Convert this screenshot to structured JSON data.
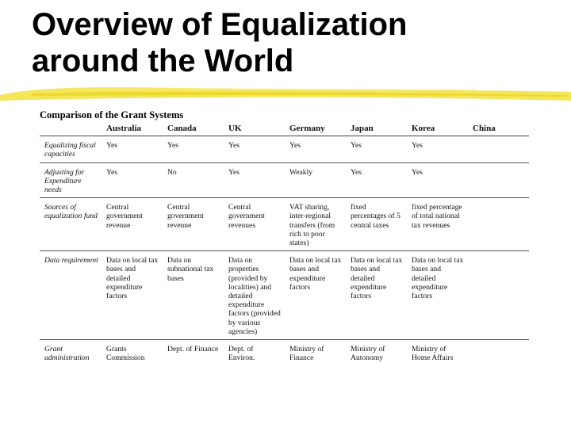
{
  "slide": {
    "title_line1": "Overview of Equalization",
    "title_line2": "around the World",
    "accent_color": "#f2e23c"
  },
  "table": {
    "heading": "Comparison of the Grant Systems",
    "columns": [
      "Australia",
      "Canada",
      "UK",
      "Germany",
      "Japan",
      "Korea",
      "China"
    ],
    "rows": [
      {
        "label": "Equalizing fiscal capacities",
        "cells": [
          "Yes",
          "Yes",
          "Yes",
          "Yes",
          "Yes",
          "Yes",
          ""
        ]
      },
      {
        "label": "Adjusting for Expenditure needs",
        "cells": [
          "Yes",
          "No",
          "Yes",
          "Weakly",
          "Yes",
          "Yes",
          ""
        ]
      },
      {
        "label": "Sources of equalization fund",
        "cells": [
          "Central government revenue",
          "Central government revenue",
          "Central government revenues",
          "VAT sharing, inter-regional transfers (from rich to poor states)",
          "fixed percentages of 5 central taxes",
          "fixed percentage of total national tax revenues",
          ""
        ]
      },
      {
        "label": "Data requirement",
        "cells": [
          "Data on local tax bases and detailed expenditure factors",
          "Data on subnational tax bases",
          "Data on properties (provided by localities) and detailed expenditure factors (provided by various agencies)",
          "Data on local tax bases and expenditure factors",
          "Data on local tax bases and detailed expenditure factors",
          "Data on local tax bases and detailed expenditure factors",
          ""
        ]
      },
      {
        "label": "Grant administration",
        "cells": [
          "Grants Commission",
          "Dept. of Finance",
          "Dept. of Environ.",
          "Ministry of Finance",
          "Ministry of Autonomy",
          "Ministry of Home Affairs",
          ""
        ]
      }
    ]
  }
}
